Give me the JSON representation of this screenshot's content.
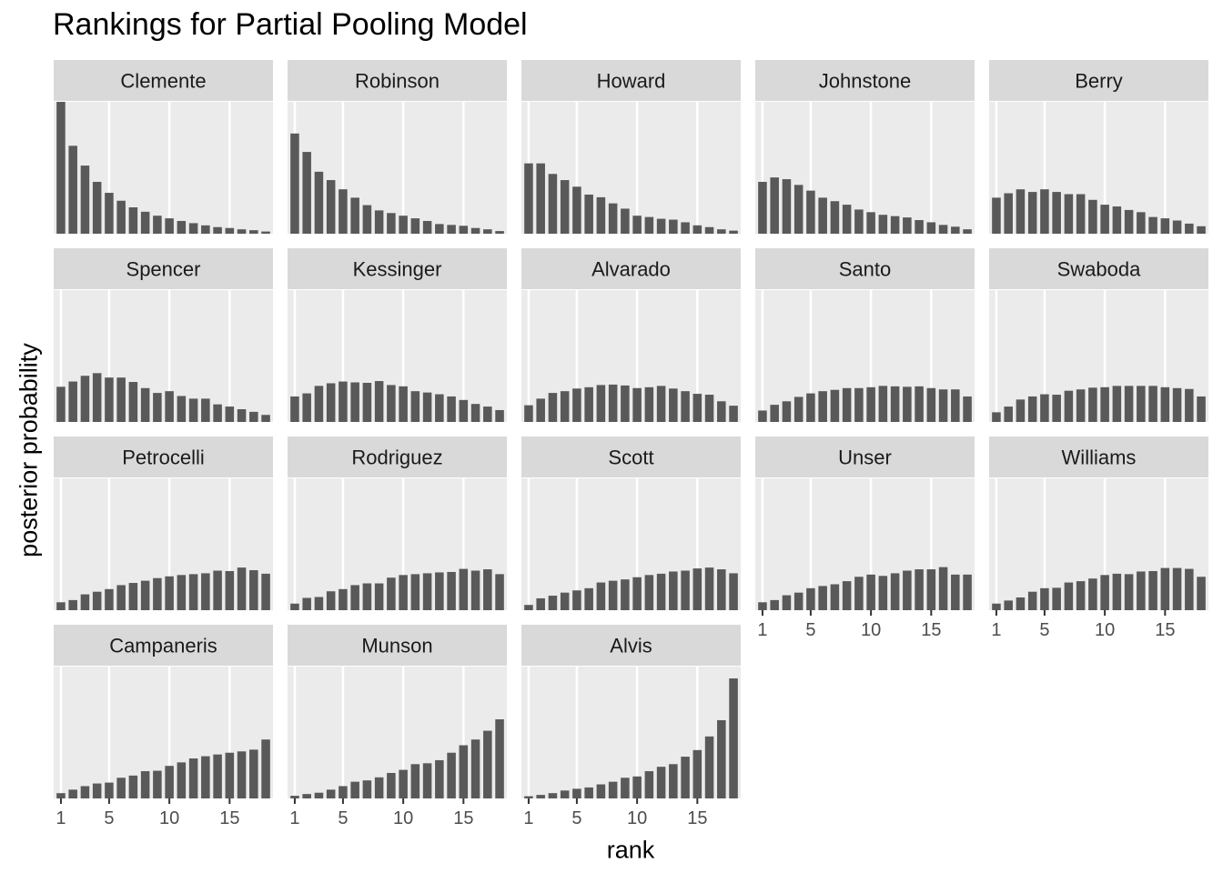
{
  "chart_data": {
    "type": "bar",
    "title": "Rankings for Partial Pooling Model",
    "xlabel": "rank",
    "ylabel": "posterior probability",
    "x": [
      1,
      2,
      3,
      4,
      5,
      6,
      7,
      8,
      9,
      10,
      11,
      12,
      13,
      14,
      15,
      16,
      17,
      18
    ],
    "x_ticks": [
      1,
      5,
      10,
      15
    ],
    "x_tick_labels": [
      "1",
      "5",
      "10",
      "15"
    ],
    "xlim": [
      0.4,
      18.6
    ],
    "ylim": [
      0,
      0.3
    ],
    "bar_color": "#595959",
    "panel_background": "#ebebeb",
    "strip_background": "#d9d9d9",
    "facets": [
      {
        "name": "Clemente",
        "values": [
          0.3,
          0.2,
          0.155,
          0.118,
          0.093,
          0.075,
          0.06,
          0.05,
          0.041,
          0.035,
          0.029,
          0.024,
          0.019,
          0.015,
          0.013,
          0.01,
          0.008,
          0.005
        ]
      },
      {
        "name": "Robinson",
        "values": [
          0.228,
          0.186,
          0.141,
          0.122,
          0.101,
          0.082,
          0.065,
          0.053,
          0.047,
          0.041,
          0.035,
          0.029,
          0.022,
          0.02,
          0.018,
          0.013,
          0.01,
          0.006
        ]
      },
      {
        "name": "Howard",
        "values": [
          0.16,
          0.16,
          0.136,
          0.122,
          0.107,
          0.089,
          0.083,
          0.069,
          0.057,
          0.041,
          0.038,
          0.034,
          0.032,
          0.026,
          0.019,
          0.015,
          0.01,
          0.007
        ]
      },
      {
        "name": "Johnstone",
        "values": [
          0.118,
          0.128,
          0.124,
          0.111,
          0.098,
          0.082,
          0.074,
          0.066,
          0.055,
          0.049,
          0.043,
          0.04,
          0.037,
          0.031,
          0.026,
          0.02,
          0.016,
          0.01
        ]
      },
      {
        "name": "Berry",
        "values": [
          0.082,
          0.092,
          0.101,
          0.095,
          0.101,
          0.095,
          0.09,
          0.09,
          0.077,
          0.066,
          0.062,
          0.054,
          0.049,
          0.038,
          0.035,
          0.03,
          0.023,
          0.017
        ]
      },
      {
        "name": "Spencer",
        "values": [
          0.08,
          0.092,
          0.105,
          0.111,
          0.101,
          0.101,
          0.091,
          0.077,
          0.066,
          0.07,
          0.059,
          0.053,
          0.053,
          0.04,
          0.035,
          0.029,
          0.023,
          0.016
        ]
      },
      {
        "name": "Kessinger",
        "values": [
          0.058,
          0.065,
          0.082,
          0.088,
          0.092,
          0.09,
          0.089,
          0.093,
          0.084,
          0.081,
          0.07,
          0.067,
          0.063,
          0.058,
          0.05,
          0.041,
          0.035,
          0.027
        ]
      },
      {
        "name": "Alvarado",
        "values": [
          0.038,
          0.053,
          0.066,
          0.07,
          0.076,
          0.079,
          0.084,
          0.085,
          0.083,
          0.077,
          0.079,
          0.082,
          0.076,
          0.07,
          0.064,
          0.062,
          0.047,
          0.037
        ]
      },
      {
        "name": "Santo",
        "values": [
          0.026,
          0.039,
          0.047,
          0.057,
          0.065,
          0.07,
          0.073,
          0.077,
          0.077,
          0.079,
          0.082,
          0.081,
          0.08,
          0.081,
          0.077,
          0.074,
          0.074,
          0.058
        ]
      },
      {
        "name": "Swaboda",
        "values": [
          0.022,
          0.035,
          0.051,
          0.058,
          0.063,
          0.062,
          0.071,
          0.074,
          0.078,
          0.079,
          0.082,
          0.082,
          0.082,
          0.082,
          0.079,
          0.077,
          0.075,
          0.058
        ]
      },
      {
        "name": "Petrocelli",
        "values": [
          0.018,
          0.023,
          0.036,
          0.042,
          0.048,
          0.057,
          0.062,
          0.067,
          0.073,
          0.077,
          0.08,
          0.082,
          0.084,
          0.09,
          0.089,
          0.097,
          0.091,
          0.083
        ]
      },
      {
        "name": "Rodriguez",
        "values": [
          0.015,
          0.028,
          0.03,
          0.043,
          0.048,
          0.057,
          0.061,
          0.061,
          0.074,
          0.08,
          0.082,
          0.084,
          0.086,
          0.087,
          0.094,
          0.09,
          0.093,
          0.082
        ]
      },
      {
        "name": "Scott",
        "values": [
          0.012,
          0.027,
          0.033,
          0.04,
          0.045,
          0.05,
          0.063,
          0.067,
          0.07,
          0.075,
          0.08,
          0.083,
          0.088,
          0.09,
          0.095,
          0.097,
          0.093,
          0.084
        ]
      },
      {
        "name": "Unser",
        "values": [
          0.018,
          0.023,
          0.034,
          0.04,
          0.05,
          0.055,
          0.059,
          0.066,
          0.076,
          0.081,
          0.078,
          0.084,
          0.09,
          0.093,
          0.093,
          0.098,
          0.081,
          0.081
        ]
      },
      {
        "name": "Williams",
        "values": [
          0.015,
          0.022,
          0.029,
          0.042,
          0.05,
          0.051,
          0.063,
          0.066,
          0.072,
          0.08,
          0.083,
          0.082,
          0.088,
          0.089,
          0.096,
          0.096,
          0.094,
          0.076
        ]
      },
      {
        "name": "Campaneris",
        "values": [
          0.012,
          0.02,
          0.028,
          0.034,
          0.036,
          0.047,
          0.052,
          0.062,
          0.063,
          0.074,
          0.082,
          0.091,
          0.096,
          0.1,
          0.104,
          0.107,
          0.111,
          0.134
        ]
      },
      {
        "name": "Munson",
        "values": [
          0.006,
          0.01,
          0.013,
          0.02,
          0.028,
          0.038,
          0.041,
          0.048,
          0.058,
          0.065,
          0.078,
          0.08,
          0.087,
          0.104,
          0.121,
          0.134,
          0.154,
          0.18
        ]
      },
      {
        "name": "Alvis",
        "values": [
          0.005,
          0.008,
          0.012,
          0.018,
          0.022,
          0.025,
          0.032,
          0.038,
          0.047,
          0.05,
          0.062,
          0.072,
          0.078,
          0.095,
          0.11,
          0.141,
          0.178,
          0.273
        ]
      }
    ]
  }
}
